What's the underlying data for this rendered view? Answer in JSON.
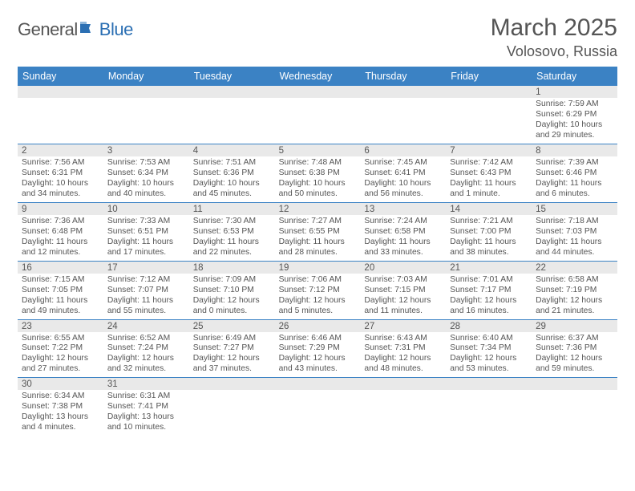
{
  "logo": {
    "general": "General",
    "blue": "Blue"
  },
  "title": "March 2025",
  "location": "Volosovo, Russia",
  "weekdays": [
    "Sunday",
    "Monday",
    "Tuesday",
    "Wednesday",
    "Thursday",
    "Friday",
    "Saturday"
  ],
  "colors": {
    "header_bg": "#3b82c4",
    "daynum_bg": "#e9e9e9",
    "blank_bg": "#f2f2f2",
    "text": "#555555"
  },
  "weeks": [
    [
      null,
      null,
      null,
      null,
      null,
      null,
      {
        "n": "1",
        "sr": "Sunrise: 7:59 AM",
        "ss": "Sunset: 6:29 PM",
        "dl": "Daylight: 10 hours and 29 minutes."
      }
    ],
    [
      {
        "n": "2",
        "sr": "Sunrise: 7:56 AM",
        "ss": "Sunset: 6:31 PM",
        "dl": "Daylight: 10 hours and 34 minutes."
      },
      {
        "n": "3",
        "sr": "Sunrise: 7:53 AM",
        "ss": "Sunset: 6:34 PM",
        "dl": "Daylight: 10 hours and 40 minutes."
      },
      {
        "n": "4",
        "sr": "Sunrise: 7:51 AM",
        "ss": "Sunset: 6:36 PM",
        "dl": "Daylight: 10 hours and 45 minutes."
      },
      {
        "n": "5",
        "sr": "Sunrise: 7:48 AM",
        "ss": "Sunset: 6:38 PM",
        "dl": "Daylight: 10 hours and 50 minutes."
      },
      {
        "n": "6",
        "sr": "Sunrise: 7:45 AM",
        "ss": "Sunset: 6:41 PM",
        "dl": "Daylight: 10 hours and 56 minutes."
      },
      {
        "n": "7",
        "sr": "Sunrise: 7:42 AM",
        "ss": "Sunset: 6:43 PM",
        "dl": "Daylight: 11 hours and 1 minute."
      },
      {
        "n": "8",
        "sr": "Sunrise: 7:39 AM",
        "ss": "Sunset: 6:46 PM",
        "dl": "Daylight: 11 hours and 6 minutes."
      }
    ],
    [
      {
        "n": "9",
        "sr": "Sunrise: 7:36 AM",
        "ss": "Sunset: 6:48 PM",
        "dl": "Daylight: 11 hours and 12 minutes."
      },
      {
        "n": "10",
        "sr": "Sunrise: 7:33 AM",
        "ss": "Sunset: 6:51 PM",
        "dl": "Daylight: 11 hours and 17 minutes."
      },
      {
        "n": "11",
        "sr": "Sunrise: 7:30 AM",
        "ss": "Sunset: 6:53 PM",
        "dl": "Daylight: 11 hours and 22 minutes."
      },
      {
        "n": "12",
        "sr": "Sunrise: 7:27 AM",
        "ss": "Sunset: 6:55 PM",
        "dl": "Daylight: 11 hours and 28 minutes."
      },
      {
        "n": "13",
        "sr": "Sunrise: 7:24 AM",
        "ss": "Sunset: 6:58 PM",
        "dl": "Daylight: 11 hours and 33 minutes."
      },
      {
        "n": "14",
        "sr": "Sunrise: 7:21 AM",
        "ss": "Sunset: 7:00 PM",
        "dl": "Daylight: 11 hours and 38 minutes."
      },
      {
        "n": "15",
        "sr": "Sunrise: 7:18 AM",
        "ss": "Sunset: 7:03 PM",
        "dl": "Daylight: 11 hours and 44 minutes."
      }
    ],
    [
      {
        "n": "16",
        "sr": "Sunrise: 7:15 AM",
        "ss": "Sunset: 7:05 PM",
        "dl": "Daylight: 11 hours and 49 minutes."
      },
      {
        "n": "17",
        "sr": "Sunrise: 7:12 AM",
        "ss": "Sunset: 7:07 PM",
        "dl": "Daylight: 11 hours and 55 minutes."
      },
      {
        "n": "18",
        "sr": "Sunrise: 7:09 AM",
        "ss": "Sunset: 7:10 PM",
        "dl": "Daylight: 12 hours and 0 minutes."
      },
      {
        "n": "19",
        "sr": "Sunrise: 7:06 AM",
        "ss": "Sunset: 7:12 PM",
        "dl": "Daylight: 12 hours and 5 minutes."
      },
      {
        "n": "20",
        "sr": "Sunrise: 7:03 AM",
        "ss": "Sunset: 7:15 PM",
        "dl": "Daylight: 12 hours and 11 minutes."
      },
      {
        "n": "21",
        "sr": "Sunrise: 7:01 AM",
        "ss": "Sunset: 7:17 PM",
        "dl": "Daylight: 12 hours and 16 minutes."
      },
      {
        "n": "22",
        "sr": "Sunrise: 6:58 AM",
        "ss": "Sunset: 7:19 PM",
        "dl": "Daylight: 12 hours and 21 minutes."
      }
    ],
    [
      {
        "n": "23",
        "sr": "Sunrise: 6:55 AM",
        "ss": "Sunset: 7:22 PM",
        "dl": "Daylight: 12 hours and 27 minutes."
      },
      {
        "n": "24",
        "sr": "Sunrise: 6:52 AM",
        "ss": "Sunset: 7:24 PM",
        "dl": "Daylight: 12 hours and 32 minutes."
      },
      {
        "n": "25",
        "sr": "Sunrise: 6:49 AM",
        "ss": "Sunset: 7:27 PM",
        "dl": "Daylight: 12 hours and 37 minutes."
      },
      {
        "n": "26",
        "sr": "Sunrise: 6:46 AM",
        "ss": "Sunset: 7:29 PM",
        "dl": "Daylight: 12 hours and 43 minutes."
      },
      {
        "n": "27",
        "sr": "Sunrise: 6:43 AM",
        "ss": "Sunset: 7:31 PM",
        "dl": "Daylight: 12 hours and 48 minutes."
      },
      {
        "n": "28",
        "sr": "Sunrise: 6:40 AM",
        "ss": "Sunset: 7:34 PM",
        "dl": "Daylight: 12 hours and 53 minutes."
      },
      {
        "n": "29",
        "sr": "Sunrise: 6:37 AM",
        "ss": "Sunset: 7:36 PM",
        "dl": "Daylight: 12 hours and 59 minutes."
      }
    ],
    [
      {
        "n": "30",
        "sr": "Sunrise: 6:34 AM",
        "ss": "Sunset: 7:38 PM",
        "dl": "Daylight: 13 hours and 4 minutes."
      },
      {
        "n": "31",
        "sr": "Sunrise: 6:31 AM",
        "ss": "Sunset: 7:41 PM",
        "dl": "Daylight: 13 hours and 10 minutes."
      },
      null,
      null,
      null,
      null,
      null
    ]
  ]
}
